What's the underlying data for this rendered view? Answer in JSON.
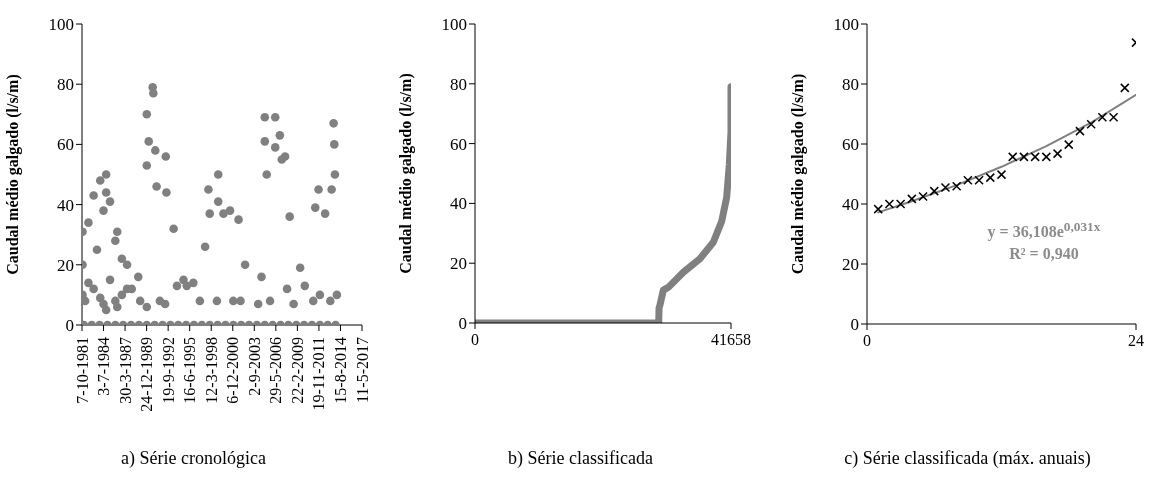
{
  "chart_data": [
    {
      "type": "scatter",
      "title": "a) Série cronológica",
      "ylabel": "Caudal médio galgado (l/s/m)",
      "xlim": [
        "1981-10-07",
        "2017-05-11"
      ],
      "xticks": [
        {
          "value": "1981-10-07",
          "label": "7-10-1981"
        },
        {
          "value": "1984-07-03",
          "label": "3-7-1984"
        },
        {
          "value": "1987-03-30",
          "label": "30-3-1987"
        },
        {
          "value": "1989-12-24",
          "label": "24-12-1989"
        },
        {
          "value": "1992-09-19",
          "label": "19-9-1992"
        },
        {
          "value": "1995-06-16",
          "label": "16-6-1995"
        },
        {
          "value": "1998-03-12",
          "label": "12-3-1998"
        },
        {
          "value": "2000-12-06",
          "label": "6-12-2000"
        },
        {
          "value": "2003-09-02",
          "label": "2-9-2003"
        },
        {
          "value": "2006-05-29",
          "label": "29-5-2006"
        },
        {
          "value": "2009-02-22",
          "label": "22-2-2009"
        },
        {
          "value": "2011-11-19",
          "label": "19-11-2011"
        },
        {
          "value": "2014-08-15",
          "label": "15-8-2014"
        },
        {
          "value": "2017-05-11",
          "label": "11-5-2017"
        }
      ],
      "ylim": [
        0,
        100
      ],
      "yticks": [
        0,
        20,
        40,
        60,
        80,
        100
      ],
      "grid": false,
      "marker": "circle",
      "series": [
        {
          "color": "#808080",
          "x": [
            "1982-01",
            "1983-01",
            "1984-01",
            "1985-01",
            "1986-01",
            "1987-01",
            "1988-01",
            "1989-01",
            "1990-01",
            "1991-01",
            "1992-01",
            "1993-01",
            "1994-01",
            "1995-01",
            "1996-01",
            "1997-01",
            "1998-01",
            "1999-01",
            "2000-01",
            "2001-01",
            "2002-01",
            "2003-01",
            "2004-01",
            "2005-01",
            "2006-01",
            "2007-01",
            "2008-01",
            "2009-01",
            "2010-01",
            "2011-01",
            "2012-01",
            "2013-01",
            "2014-01",
            "1981-11",
            "1981-11",
            "1981-11",
            "1982-03",
            "1982-08",
            "1982-08",
            "1983-04",
            "1983-04",
            "1983-09",
            "1984-02",
            "1984-02",
            "1984-07",
            "1984-07",
            "1984-11",
            "1984-11",
            "1984-11",
            "1985-05",
            "1985-05",
            "1986-01",
            "1986-01",
            "1986-04",
            "1986-04",
            "1986-11",
            "1986-11",
            "1987-07",
            "1987-07",
            "1988-02",
            "1988-12",
            "1989-03",
            "1990-01",
            "1990-01",
            "1990-01",
            "1990-04",
            "1990-10",
            "1990-11",
            "1991-02",
            "1991-04",
            "1991-09",
            "1992-05",
            "1992-06",
            "1992-07",
            "1993-06",
            "1993-11",
            "1994-09",
            "1995-02",
            "1995-12",
            "1996-10",
            "1997-06",
            "1997-11",
            "1998-01",
            "1998-12",
            "1999-02",
            "1999-02",
            "1999-10",
            "2000-08",
            "2001-01",
            "2001-09",
            "2001-12",
            "2002-07",
            "2004-03",
            "2004-08",
            "2005-01",
            "2005-01",
            "2005-04",
            "2005-09",
            "2006-05",
            "2006-05",
            "2006-12",
            "2007-03",
            "2007-08",
            "2007-11",
            "2008-03",
            "2008-09",
            "2009-07",
            "2010-02",
            "2011-03",
            "2011-06",
            "2011-11",
            "2012-01",
            "2012-09",
            "2013-05",
            "2013-07",
            "2013-10",
            "2013-11",
            "2013-12",
            "2014-03"
          ],
          "values": [
            0,
            0,
            0,
            0,
            0,
            0,
            0,
            0,
            0,
            0,
            0,
            0,
            0,
            0,
            0,
            0,
            0,
            0,
            0,
            0,
            0,
            0,
            0,
            0,
            0,
            0,
            0,
            0,
            0,
            0,
            0,
            0,
            0,
            31,
            20,
            10,
            8,
            34,
            14,
            43,
            12,
            25,
            48,
            9,
            38,
            7,
            50,
            44,
            5,
            41,
            15,
            28,
            8,
            31,
            6,
            22,
            10,
            20,
            12,
            12,
            16,
            8,
            70,
            53,
            6,
            61,
            79,
            77,
            58,
            46,
            8,
            7,
            56,
            44,
            32,
            13,
            15,
            13,
            14,
            8,
            26,
            45,
            37,
            8,
            50,
            41,
            37,
            38,
            8,
            35,
            8,
            20,
            7,
            16,
            69,
            61,
            50,
            8,
            69,
            59,
            63,
            55,
            56,
            12,
            36,
            7,
            19,
            13,
            8,
            39,
            45,
            10,
            37,
            8,
            45,
            67,
            60,
            50,
            10
          ]
        }
      ]
    },
    {
      "type": "line",
      "title": "b) Série classificada",
      "ylabel": "Caudal médio galgado (l/s/m)",
      "xlim": [
        0,
        41658
      ],
      "xticks": [
        0,
        41658
      ],
      "ylim": [
        0,
        100
      ],
      "yticks": [
        0,
        20,
        40,
        60,
        80,
        100
      ],
      "grid": false,
      "marker": "none",
      "series": [
        {
          "color": "#808080",
          "x": [
            0,
            29900,
            29950,
            30100,
            30650,
            31500,
            33900,
            36600,
            38780,
            40140,
            40950,
            41385,
            41658,
            41658
          ],
          "values": [
            0,
            0,
            5,
            6,
            11,
            12,
            17,
            21.5,
            27,
            34,
            42,
            53,
            64,
            79
          ]
        }
      ]
    },
    {
      "type": "scatter",
      "title": "c) Série classificada (máx. anuais)",
      "ylabel": "Caudal médio galgado (l/s/m)",
      "xlim": [
        0,
        24
      ],
      "xticks": [
        0,
        24
      ],
      "ylim": [
        0,
        100
      ],
      "yticks": [
        0,
        20,
        40,
        60,
        80,
        100
      ],
      "grid": false,
      "annotations": [
        "y = 36,108e$^{0,031x}$",
        "R² = 0,940"
      ],
      "series": [
        {
          "marker": "cross",
          "color": "#000000",
          "x": [
            1,
            2,
            3,
            4,
            5,
            6,
            7,
            8,
            9,
            10,
            11,
            12,
            13,
            14,
            15,
            16,
            17,
            18,
            19,
            20,
            21,
            22,
            23,
            24
          ],
          "values": [
            38.3,
            40,
            40,
            41.7,
            42.5,
            44.3,
            45.5,
            45.9,
            47.9,
            47.9,
            48.8,
            49.8,
            55.7,
            55.7,
            55.7,
            55.7,
            56.8,
            59.8,
            64.3,
            66.6,
            68.9,
            68.9,
            78.7,
            93.8
          ]
        },
        {
          "type": "line",
          "marker": "none",
          "color": "#808080",
          "x": [
            1,
            4,
            8,
            12,
            16,
            20,
            24
          ],
          "values": [
            37.2,
            40.9,
            46.3,
            52.4,
            59.3,
            67.1,
            76.4
          ]
        }
      ]
    }
  ]
}
